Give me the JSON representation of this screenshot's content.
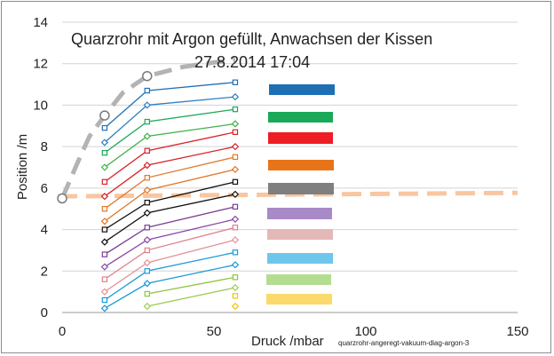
{
  "chart_data": {
    "type": "line",
    "title": "Quarzrohr mit Argon gefüllt, Anwachsen der Kissen",
    "subtitle": "27.8.2014   17:04",
    "xlabel": "Druck /mbar",
    "ylabel": "Position /m",
    "note": "quarzrohr-angeregt-vakuum-diag-argon-3",
    "xlim": [
      0,
      150
    ],
    "ylim": [
      0,
      14
    ],
    "x_ticks": [
      "0",
      "50",
      "100",
      "150"
    ],
    "y_ticks": [
      "0",
      "2",
      "4",
      "6",
      "8",
      "10",
      "12",
      "14"
    ],
    "grid": "horizontal",
    "x": [
      14,
      28,
      57
    ],
    "series": [
      {
        "color": "#1f6fb5",
        "marker": "square",
        "values": [
          8.9,
          10.7,
          11.1
        ]
      },
      {
        "color": "#2e7fc2",
        "marker": "diamond",
        "values": [
          8.2,
          10.0,
          10.4
        ]
      },
      {
        "color": "#1aa859",
        "marker": "square",
        "values": [
          7.7,
          9.2,
          9.8
        ]
      },
      {
        "color": "#3fb24a",
        "marker": "diamond",
        "values": [
          7.0,
          8.5,
          9.1
        ]
      },
      {
        "color": "#d9222a",
        "marker": "square",
        "values": [
          6.3,
          7.8,
          8.7
        ]
      },
      {
        "color": "#d9222a",
        "marker": "diamond",
        "values": [
          5.6,
          7.1,
          8.0
        ]
      },
      {
        "color": "#e0782a",
        "marker": "square",
        "values": [
          5.0,
          6.5,
          7.5
        ]
      },
      {
        "color": "#e0782a",
        "marker": "diamond",
        "values": [
          4.4,
          5.9,
          6.9
        ]
      },
      {
        "color": "#111111",
        "marker": "square",
        "values": [
          4.0,
          5.3,
          6.3
        ]
      },
      {
        "color": "#111111",
        "marker": "diamond",
        "values": [
          3.4,
          4.8,
          5.7
        ]
      },
      {
        "color": "#7a3e96",
        "marker": "square",
        "values": [
          2.8,
          4.1,
          5.1
        ]
      },
      {
        "color": "#8a48a8",
        "marker": "diamond",
        "values": [
          2.2,
          3.5,
          4.5
        ]
      },
      {
        "color": "#e07f8a",
        "marker": "square",
        "values": [
          1.6,
          3.0,
          4.1
        ]
      },
      {
        "color": "#e4939a",
        "marker": "diamond",
        "values": [
          1.0,
          2.4,
          3.5
        ]
      },
      {
        "color": "#1a9ad6",
        "marker": "square",
        "values": [
          0.6,
          2.0,
          2.9
        ]
      },
      {
        "color": "#1a9ad6",
        "marker": "diamond",
        "values": [
          0.2,
          1.4,
          2.3
        ]
      },
      {
        "color": "#8dc63f",
        "marker": "square",
        "values": [
          null,
          0.9,
          1.7
        ]
      },
      {
        "color": "#9ccc50",
        "marker": "diamond",
        "values": [
          null,
          0.3,
          1.2
        ]
      },
      {
        "color": "#f2c200",
        "marker": "square",
        "values": [
          null,
          null,
          0.8
        ]
      },
      {
        "color": "#f2c200",
        "marker": "diamond",
        "values": [
          null,
          null,
          0.3
        ]
      }
    ],
    "envelope": {
      "color": "#b3b3b3",
      "style": "dashed",
      "x": [
        0,
        5,
        9,
        14,
        20,
        28,
        40,
        57
      ],
      "values": [
        5.5,
        7.2,
        8.5,
        9.5,
        10.6,
        11.4,
        11.85,
        12.2
      ],
      "markers": [
        [
          0,
          5.5
        ],
        [
          14,
          9.5
        ],
        [
          28,
          11.4
        ]
      ]
    },
    "reference_line": {
      "color": "#f8c6a0",
      "style": "dashed",
      "value": 5.6
    },
    "legend_swatches": [
      "#1f6fb5",
      "#1aa859",
      "#ee1c24",
      "#e8741a",
      "#7f7f7f",
      "#a88ac8",
      "#e5b8b8",
      "#6ec6ec",
      "#b5dd92",
      "#fbd96a"
    ]
  }
}
